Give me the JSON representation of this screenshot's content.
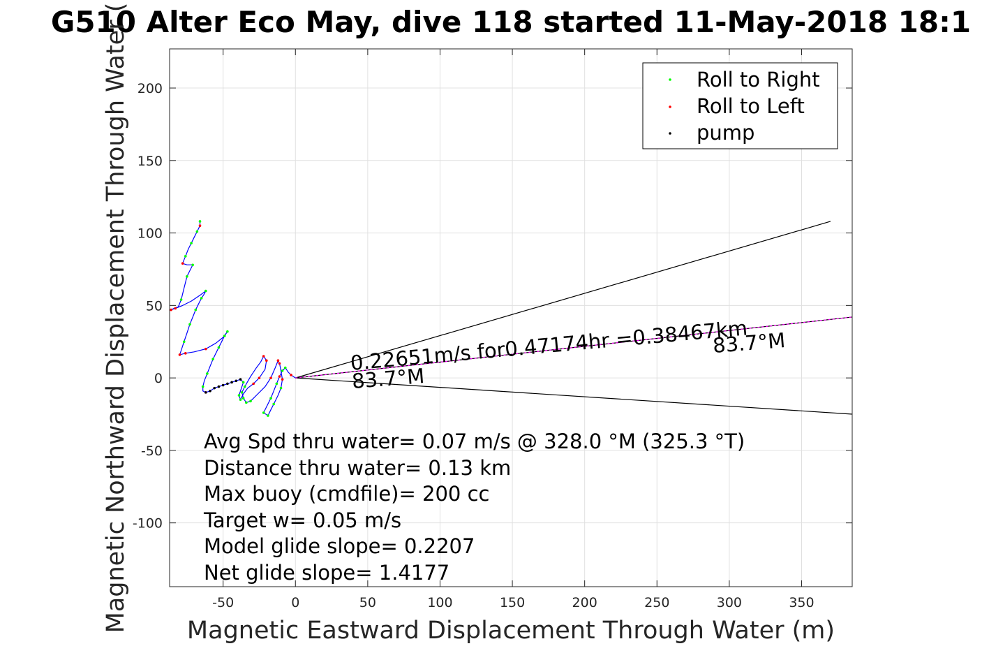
{
  "chart_data": {
    "type": "line",
    "title": "G510 Alter Eco May, dive 118 started 11-May-2018 18:1",
    "xlabel": "Magnetic Eastward Displacement Through Water (m)",
    "ylabel": "Magnetic Northward Displacement Through Water (",
    "xlim": [
      -87,
      385
    ],
    "ylim": [
      -144,
      227
    ],
    "xticks": [
      -50,
      0,
      50,
      100,
      150,
      200,
      250,
      300,
      350
    ],
    "yticks": [
      -100,
      -50,
      0,
      50,
      100,
      150,
      200
    ],
    "xtick_labels": [
      "-50",
      "0",
      "50",
      "100",
      "150",
      "200",
      "250",
      "300",
      "350"
    ],
    "ytick_labels": [
      "-100",
      "-50",
      "0",
      "50",
      "100",
      "150",
      "200"
    ],
    "grid": true,
    "legend_position": "top-right",
    "legend": [
      {
        "label": "Roll to Right",
        "color": "#00ff00"
      },
      {
        "label": "Roll to Left",
        "color": "#ff0000"
      },
      {
        "label": "pump",
        "color": "#000000"
      }
    ],
    "track_color": "#0000ff",
    "track": [
      [
        0,
        0
      ],
      [
        -3,
        2
      ],
      [
        -5,
        4
      ],
      [
        -7,
        7
      ],
      [
        -9,
        5
      ],
      [
        -11,
        1
      ],
      [
        -13,
        -4
      ],
      [
        -15,
        -9
      ],
      [
        -17,
        -14
      ],
      [
        -20,
        -20
      ],
      [
        -22,
        -24
      ],
      [
        -19,
        -26
      ],
      [
        -17,
        -22
      ],
      [
        -15,
        -18
      ],
      [
        -12,
        -12
      ],
      [
        -10,
        -7
      ],
      [
        -9,
        -1
      ],
      [
        -10,
        5
      ],
      [
        -11,
        10
      ],
      [
        -12,
        12
      ],
      [
        -14,
        7
      ],
      [
        -17,
        0
      ],
      [
        -21,
        -6
      ],
      [
        -26,
        -11
      ],
      [
        -31,
        -16
      ],
      [
        -34,
        -17
      ],
      [
        -36,
        -14
      ],
      [
        -37,
        -10
      ],
      [
        -35,
        -6
      ],
      [
        -31,
        1
      ],
      [
        -27,
        7
      ],
      [
        -24,
        11
      ],
      [
        -22,
        15
      ],
      [
        -20,
        12
      ],
      [
        -21,
        6
      ],
      [
        -25,
        0
      ],
      [
        -29,
        -4
      ],
      [
        -33,
        -7
      ],
      [
        -36,
        -11
      ],
      [
        -38,
        -15
      ],
      [
        -39,
        -12
      ],
      [
        -37,
        -6
      ],
      [
        -36,
        -3
      ],
      [
        -38,
        -1
      ],
      [
        -41,
        -2
      ],
      [
        -44,
        -3
      ],
      [
        -47,
        -4
      ],
      [
        -50,
        -5
      ],
      [
        -53,
        -6
      ],
      [
        -56,
        -7
      ],
      [
        -59,
        -9
      ],
      [
        -62,
        -10
      ],
      [
        -64,
        -9
      ],
      [
        -64,
        -6
      ],
      [
        -63,
        -2
      ],
      [
        -61,
        3
      ],
      [
        -59,
        8
      ],
      [
        -57,
        13
      ],
      [
        -55,
        17
      ],
      [
        -53,
        21
      ],
      [
        -51,
        25
      ],
      [
        -49,
        29
      ],
      [
        -47,
        32
      ],
      [
        -50,
        28
      ],
      [
        -55,
        24
      ],
      [
        -62,
        20
      ],
      [
        -70,
        18
      ],
      [
        -76,
        17
      ],
      [
        -80,
        16
      ],
      [
        -79,
        19
      ],
      [
        -77,
        25
      ],
      [
        -75,
        31
      ],
      [
        -73,
        37
      ],
      [
        -71,
        42
      ],
      [
        -69,
        47
      ],
      [
        -67,
        51
      ],
      [
        -65,
        55
      ],
      [
        -63,
        58
      ],
      [
        -62,
        60
      ],
      [
        -66,
        57
      ],
      [
        -72,
        53
      ],
      [
        -78,
        50
      ],
      [
        -83,
        48
      ],
      [
        -86,
        47
      ],
      [
        -84,
        48
      ],
      [
        -81,
        49
      ],
      [
        -79,
        54
      ],
      [
        -77,
        62
      ],
      [
        -75,
        70
      ],
      [
        -73,
        74
      ],
      [
        -71,
        78
      ],
      [
        -75,
        78
      ],
      [
        -78,
        79
      ],
      [
        -76,
        84
      ],
      [
        -74,
        89
      ],
      [
        -72,
        93
      ],
      [
        -70,
        97
      ],
      [
        -68,
        101
      ],
      [
        -66,
        105
      ],
      [
        -66,
        108
      ]
    ],
    "pump_points": [
      [
        -38,
        -1
      ],
      [
        -41,
        -2
      ],
      [
        -44,
        -3
      ],
      [
        -47,
        -4
      ],
      [
        -50,
        -5
      ],
      [
        -53,
        -6
      ],
      [
        -56,
        -7
      ],
      [
        -59,
        -9
      ],
      [
        -62,
        -10
      ]
    ],
    "right_points": [
      [
        -7,
        7
      ],
      [
        -9,
        5
      ],
      [
        -13,
        -4
      ],
      [
        -17,
        -14
      ],
      [
        -22,
        -24
      ],
      [
        -19,
        -26
      ],
      [
        -15,
        -18
      ],
      [
        -10,
        -7
      ],
      [
        -34,
        -17
      ],
      [
        -36,
        -14
      ],
      [
        -37,
        -10
      ],
      [
        -35,
        -6
      ],
      [
        -31,
        -16
      ],
      [
        -38,
        -15
      ],
      [
        -39,
        -12
      ],
      [
        -36,
        -3
      ],
      [
        -64,
        -6
      ],
      [
        -61,
        3
      ],
      [
        -57,
        13
      ],
      [
        -53,
        21
      ],
      [
        -49,
        29
      ],
      [
        -47,
        32
      ],
      [
        -77,
        25
      ],
      [
        -73,
        37
      ],
      [
        -69,
        47
      ],
      [
        -65,
        55
      ],
      [
        -62,
        60
      ],
      [
        -79,
        54
      ],
      [
        -75,
        70
      ],
      [
        -71,
        78
      ],
      [
        -76,
        84
      ],
      [
        -72,
        93
      ],
      [
        -68,
        101
      ],
      [
        -66,
        108
      ]
    ],
    "left_points": [
      [
        -3,
        2
      ],
      [
        -11,
        1
      ],
      [
        -9,
        -1
      ],
      [
        -11,
        10
      ],
      [
        -12,
        12
      ],
      [
        -17,
        0
      ],
      [
        -22,
        15
      ],
      [
        -20,
        12
      ],
      [
        -25,
        0
      ],
      [
        -29,
        -4
      ],
      [
        -62,
        -10
      ],
      [
        -62,
        20
      ],
      [
        -76,
        17
      ],
      [
        -80,
        16
      ],
      [
        -83,
        48
      ],
      [
        -86,
        47
      ],
      [
        -78,
        79
      ],
      [
        -66,
        105
      ]
    ],
    "cone_upper": [
      [
        0,
        0
      ],
      [
        370,
        108
      ]
    ],
    "cone_lower": [
      [
        0,
        0
      ],
      [
        385,
        -25
      ]
    ],
    "heading_line": [
      [
        0,
        0
      ],
      [
        385,
        42
      ]
    ],
    "heading_line_color": "#ff00ff",
    "annotations": [
      "0.22651m/s for0.47174hr =0.38467km",
      "83.7°M",
      "83.7°M"
    ],
    "stats": [
      "Avg Spd thru water=  0.07 m/s @ 328.0 °M (325.3 °T)",
      "Distance thru water=  0.13 km",
      "Max buoy (cmdfile)= 200 cc",
      "Target w= 0.05 m/s",
      "Model glide slope= 0.2207",
      "Net glide slope= 1.4177"
    ]
  }
}
